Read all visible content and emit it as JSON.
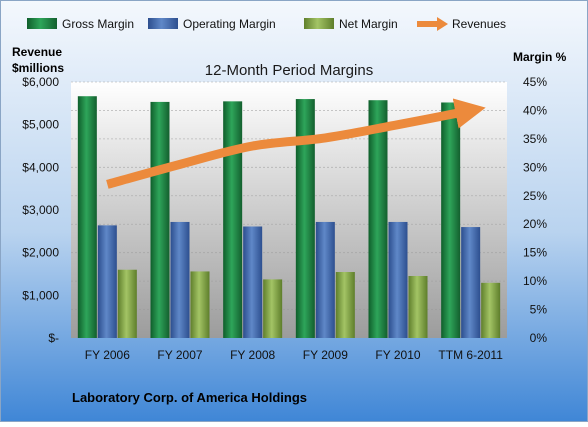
{
  "chart_data": {
    "type": "bar",
    "title": "12-Month Period Margins",
    "company": "Laboratory  Corp. of America Holdings",
    "left_axis_label_line1": "Revenue",
    "left_axis_label_line2": "$millions",
    "right_axis_label": "Margin %",
    "categories": [
      "FY 2006",
      "FY 2007",
      "FY 2008",
      "FY 2009",
      "FY 2010",
      "TTM 6-2011"
    ],
    "left_ticks": [
      "$-",
      "$1,000",
      "$2,000",
      "$3,000",
      "$4,000",
      "$5,000",
      "$6,000"
    ],
    "right_ticks": [
      "0%",
      "5%",
      "10%",
      "15%",
      "20%",
      "25%",
      "30%",
      "35%",
      "40%",
      "45%"
    ],
    "ylim_left": [
      0,
      6000
    ],
    "ylim_right": [
      0,
      45
    ],
    "legend_position": "top",
    "series": [
      {
        "name": "Gross Margin",
        "axis": "right",
        "kind": "bar",
        "color": "#1e8a44",
        "values": [
          42.5,
          41.5,
          41.6,
          42.0,
          41.8,
          41.4
        ]
      },
      {
        "name": "Operating Margin",
        "axis": "right",
        "kind": "bar",
        "color": "#4a72b8",
        "values": [
          19.8,
          20.4,
          19.6,
          20.4,
          20.4,
          19.5
        ]
      },
      {
        "name": "Net Margin",
        "axis": "right",
        "kind": "bar",
        "color": "#8bb04a",
        "values": [
          12.0,
          11.7,
          10.3,
          11.6,
          10.9,
          9.7
        ]
      },
      {
        "name": "Revenues",
        "axis": "left",
        "kind": "line",
        "color": "#ec8a3c",
        "values": [
          3600,
          4070,
          4500,
          4690,
          5000,
          5330
        ]
      }
    ]
  }
}
